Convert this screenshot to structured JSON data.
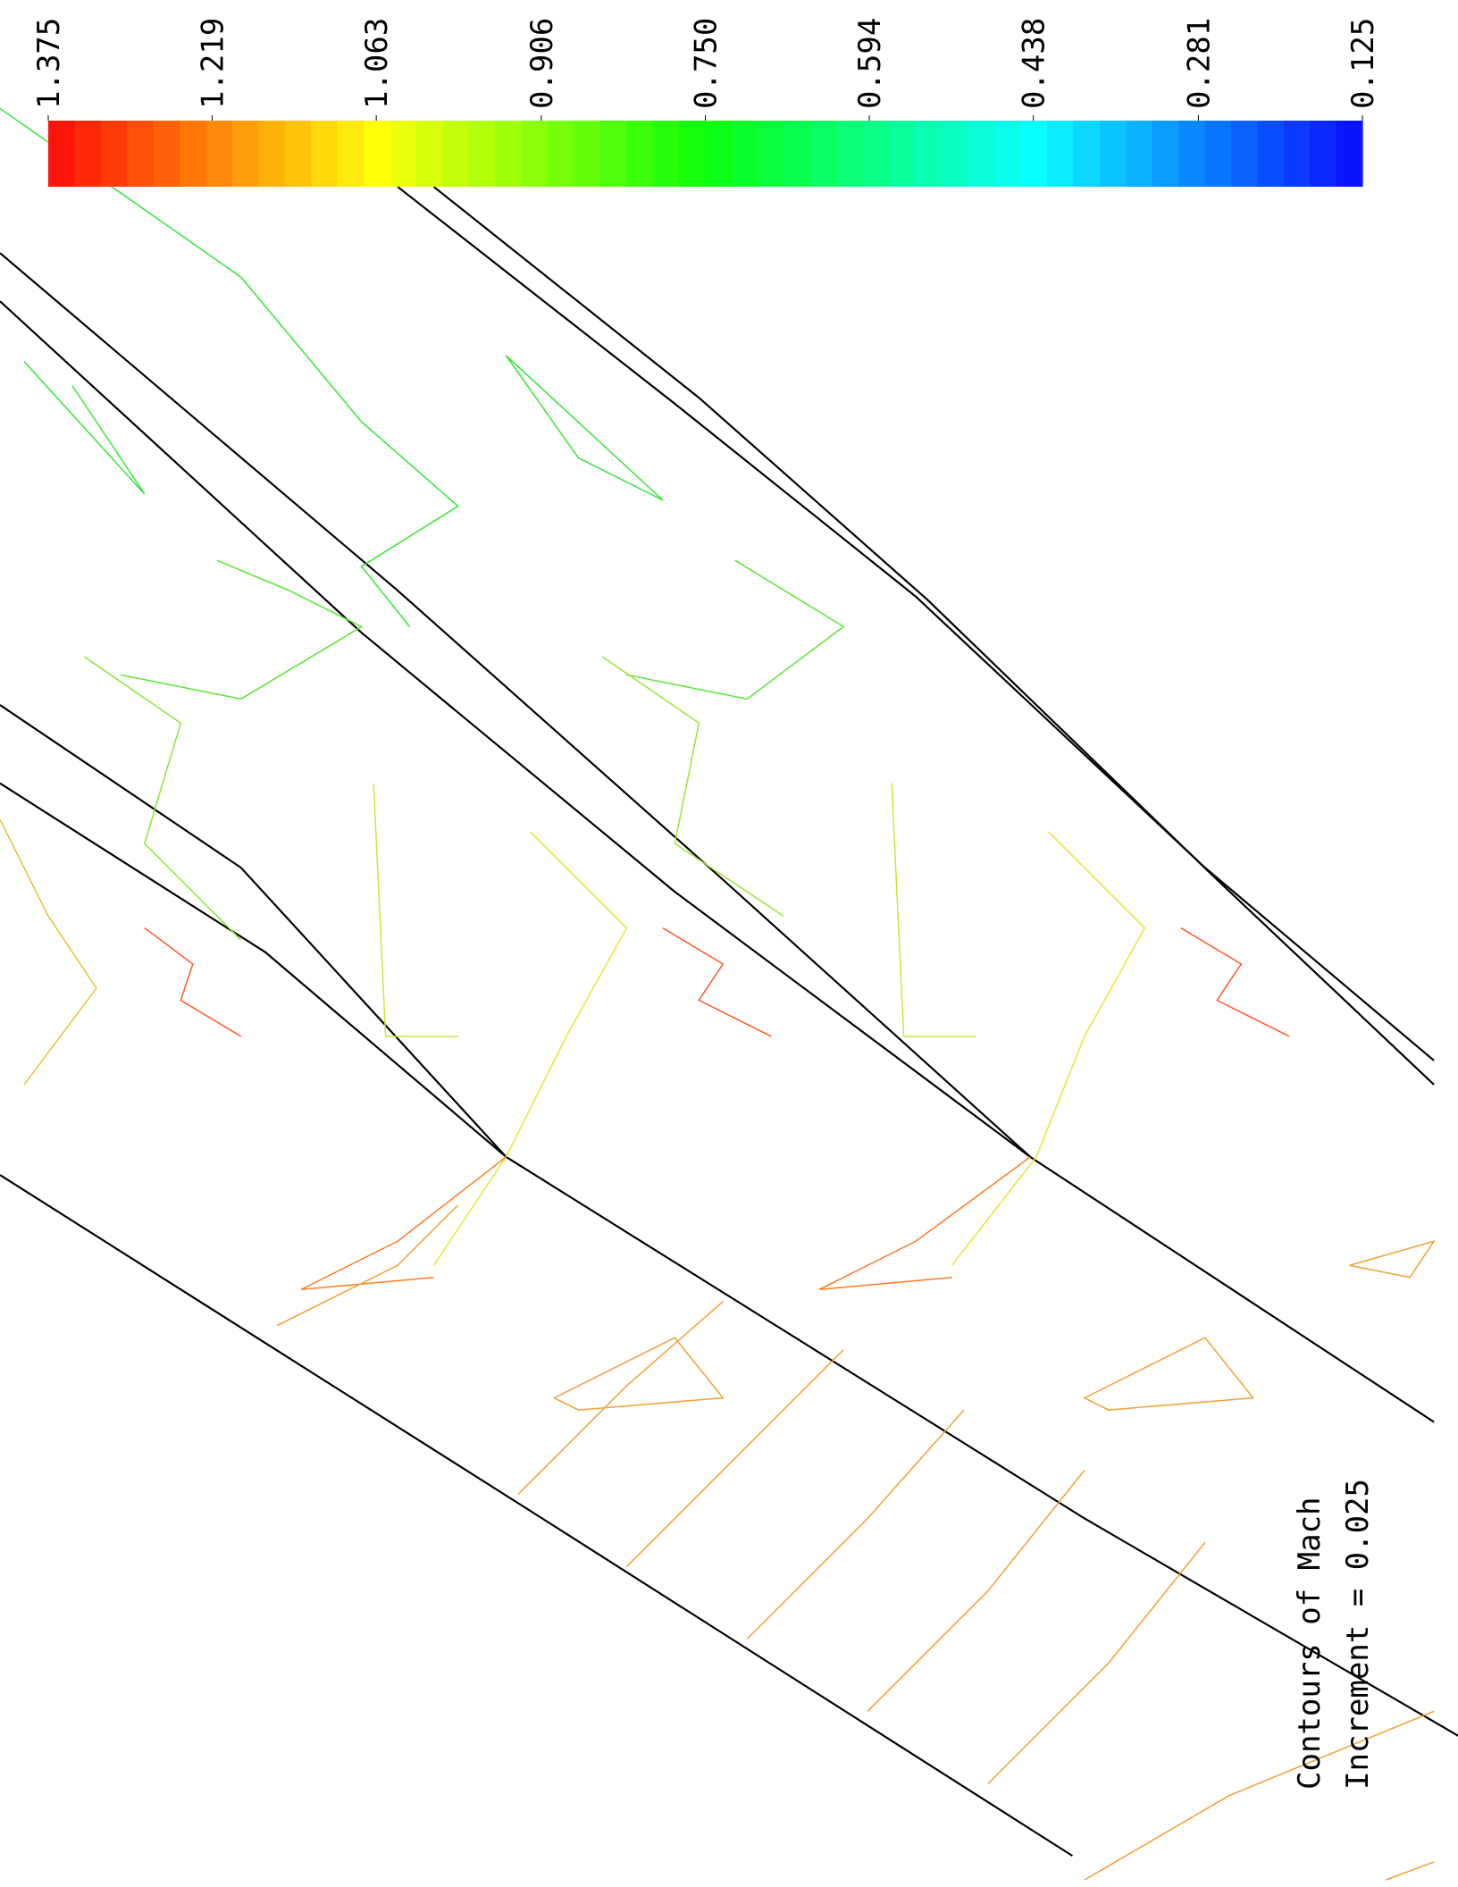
{
  "chart_data": {
    "type": "contour",
    "title": "Contours of Mach",
    "annotation": "Increment = 0.025",
    "increment": 0.025,
    "zlim": [
      0.125,
      1.375
    ],
    "zticks": [
      1.375,
      1.219,
      1.063,
      0.906,
      {
        "value": 0.75,
        "label": "0.750"
      },
      0.594,
      0.438,
      0.281,
      0.125
    ],
    "colormap": "jet"
  }
}
